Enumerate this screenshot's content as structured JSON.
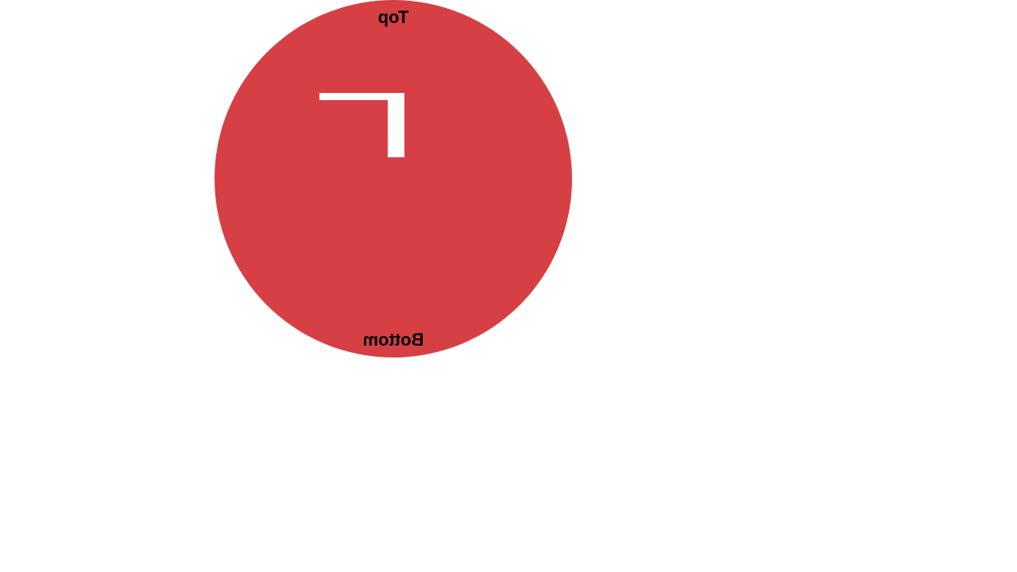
{
  "disc": {
    "color": "#d64045",
    "top_label": "Top",
    "bottom_label": "Bottom",
    "mark_color": "#ffffff",
    "mirrored": true
  }
}
